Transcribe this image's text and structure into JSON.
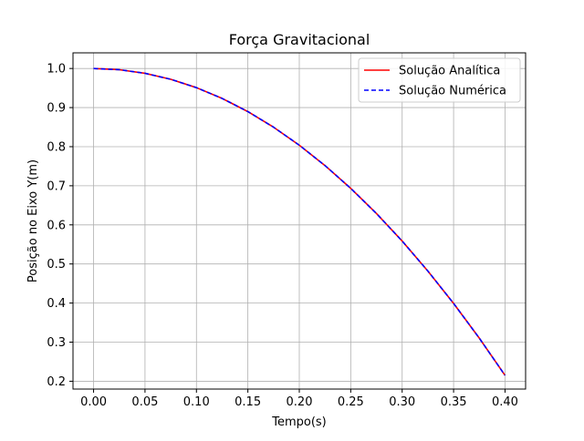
{
  "chart_data": {
    "type": "line",
    "title": "Força Gravitacional",
    "xlabel": "Tempo(s)",
    "ylabel": "Posição no Eixo Y(m)",
    "xlim": [
      -0.02,
      0.42
    ],
    "ylim": [
      0.18,
      1.04
    ],
    "xticks": [
      0.0,
      0.05,
      0.1,
      0.15,
      0.2,
      0.25,
      0.3,
      0.35,
      0.4
    ],
    "xtick_labels": [
      "0.00",
      "0.05",
      "0.10",
      "0.15",
      "0.20",
      "0.25",
      "0.30",
      "0.35",
      "0.40"
    ],
    "yticks": [
      0.2,
      0.3,
      0.4,
      0.5,
      0.6,
      0.7,
      0.8,
      0.9,
      1.0
    ],
    "ytick_labels": [
      "0.2",
      "0.3",
      "0.4",
      "0.5",
      "0.6",
      "0.7",
      "0.8",
      "0.9",
      "1.0"
    ],
    "grid": true,
    "legend": "top-right",
    "x": [
      0.0,
      0.025,
      0.05,
      0.075,
      0.1,
      0.125,
      0.15,
      0.175,
      0.2,
      0.225,
      0.25,
      0.275,
      0.3,
      0.325,
      0.35,
      0.375,
      0.4
    ],
    "series": [
      {
        "name": "Solução Analítica",
        "color": "#ff0000",
        "style": "solid",
        "values": [
          1.0,
          0.9969,
          0.9877,
          0.9724,
          0.951,
          0.9234,
          0.8897,
          0.8498,
          0.8038,
          0.7517,
          0.6934,
          0.6291,
          0.5586,
          0.4819,
          0.3991,
          0.3102,
          0.2152
        ]
      },
      {
        "name": "Solução Numérica",
        "color": "#0000ff",
        "style": "dashed",
        "values": [
          1.0,
          0.9969,
          0.9877,
          0.9724,
          0.951,
          0.9234,
          0.8897,
          0.8498,
          0.8038,
          0.7517,
          0.6934,
          0.6291,
          0.5586,
          0.4819,
          0.3991,
          0.3102,
          0.2152
        ]
      }
    ]
  }
}
